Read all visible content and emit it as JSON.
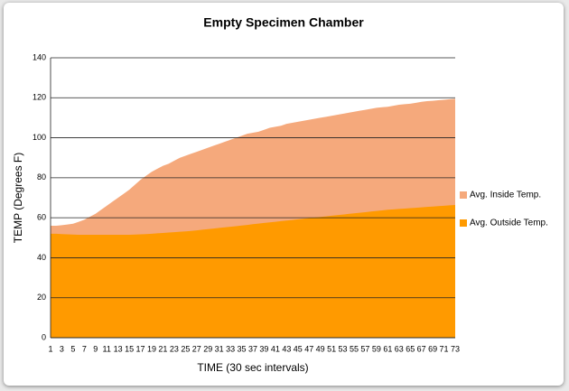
{
  "chart_data": {
    "type": "area",
    "title": "Empty Specimen Chamber",
    "x_label": "TIME (30 sec intervals)",
    "y_label": "TEMP (Degrees F)",
    "categories": [
      1,
      null,
      3,
      null,
      5,
      null,
      7,
      null,
      9,
      null,
      11,
      null,
      13,
      null,
      15,
      null,
      17,
      null,
      19,
      null,
      21,
      null,
      23,
      null,
      25,
      null,
      27,
      null,
      29,
      null,
      31,
      null,
      33,
      null,
      35,
      null,
      37,
      null,
      39,
      null,
      41,
      null,
      43,
      null,
      45,
      null,
      47,
      null,
      49,
      null,
      51,
      null,
      53,
      null,
      55,
      null,
      57,
      null,
      59,
      null,
      61,
      null,
      63,
      null,
      65,
      null,
      67,
      null,
      69,
      null,
      71,
      null,
      73
    ],
    "series": [
      {
        "name": "Avg. Inside Temp.",
        "color": "#f5a97c",
        "values": [
          56,
          56,
          56.3,
          56.6,
          57,
          58,
          59,
          60.5,
          62,
          64,
          66,
          68,
          70,
          72,
          74,
          76.5,
          79,
          81,
          83,
          84.5,
          86,
          87,
          88.5,
          90,
          91,
          92,
          93,
          94,
          95,
          96,
          97,
          98,
          99,
          100,
          101,
          102,
          102.5,
          103,
          104,
          105,
          105.5,
          106,
          107,
          107.5,
          108,
          108.5,
          109,
          109.5,
          110,
          110.5,
          111,
          111.5,
          112,
          112.5,
          113,
          113.5,
          114,
          114.5,
          115,
          115.3,
          115.5,
          116,
          116.5,
          116.8,
          117,
          117.5,
          118,
          118.3,
          118.5,
          118.8,
          119,
          119.3,
          119.5
        ]
      },
      {
        "name": "Avg. Outside Temp.",
        "color": "#ff9a00",
        "values": [
          52,
          52,
          51.8,
          51.7,
          51.6,
          51.5,
          51.5,
          51.5,
          51.5,
          51.5,
          51.5,
          51.5,
          51.5,
          51.5,
          51.5,
          51.6,
          51.7,
          51.8,
          52,
          52.2,
          52.4,
          52.6,
          52.8,
          53,
          53.2,
          53.4,
          53.7,
          54,
          54.3,
          54.6,
          54.9,
          55.2,
          55.5,
          55.8,
          56.1,
          56.4,
          56.8,
          57.1,
          57.4,
          57.7,
          58,
          58.3,
          58.6,
          58.9,
          59.2,
          59.5,
          59.8,
          60.1,
          60.4,
          60.7,
          61,
          61.3,
          61.6,
          61.9,
          62.2,
          62.5,
          62.8,
          63.1,
          63.4,
          63.7,
          64,
          64.2,
          64.4,
          64.6,
          64.8,
          65,
          65.2,
          65.4,
          65.6,
          65.8,
          66,
          66.2,
          66.4
        ]
      }
    ],
    "ylim": [
      0,
      140
    ],
    "yticks": [
      0,
      20,
      40,
      60,
      80,
      100,
      120,
      140
    ],
    "grid": true,
    "legend": "right"
  }
}
